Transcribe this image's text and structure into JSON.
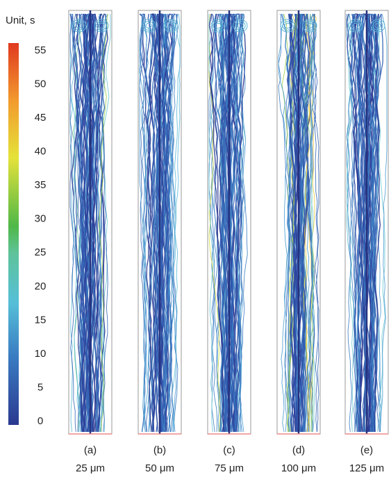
{
  "colorbar": {
    "title": "Unit, s",
    "ticks": [
      0,
      5,
      10,
      15,
      20,
      25,
      30,
      35,
      40,
      45,
      50,
      55
    ]
  },
  "panels": [
    {
      "label": "(a)",
      "size": "25 μm"
    },
    {
      "label": "(b)",
      "size": "50 μm"
    },
    {
      "label": "(c)",
      "size": "75 μm"
    },
    {
      "label": "(d)",
      "size": "100 μm"
    },
    {
      "label": "(e)",
      "size": "125 μm"
    }
  ]
}
